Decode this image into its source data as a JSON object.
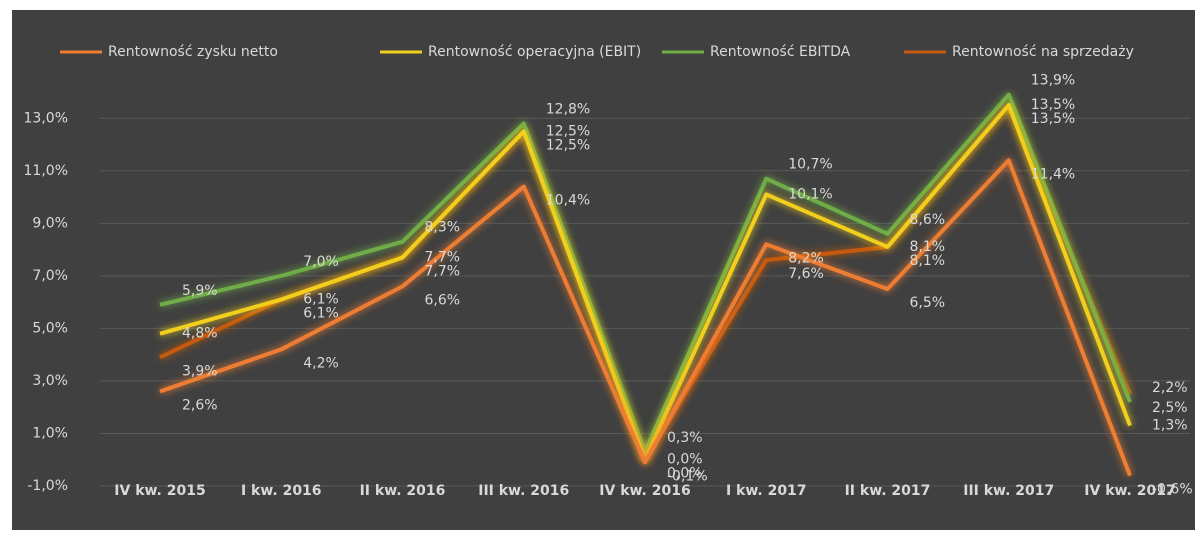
{
  "chart_data": {
    "type": "line",
    "categories": [
      "IV kw. 2015",
      "I kw. 2016",
      "II kw. 2016",
      "III kw. 2016",
      "IV kw. 2016",
      "I kw. 2017",
      "II kw. 2017",
      "III kw. 2017",
      "IV kw. 2017"
    ],
    "series": [
      {
        "name": "Rentowność zysku netto",
        "color": "#ed7d31",
        "values": [
          2.6,
          4.2,
          6.6,
          10.4,
          -0.1,
          8.2,
          6.5,
          11.4,
          -0.6
        ],
        "value_labels": [
          "2,6%",
          "4,2%",
          "6,6%",
          "10,4%",
          "-0,1%",
          "8,2%",
          "6,5%",
          "11,4%",
          "-0,6%"
        ]
      },
      {
        "name": "Rentowność operacyjna (EBIT)",
        "color": "#f2cf1d",
        "values": [
          4.8,
          6.1,
          7.7,
          12.5,
          0.0,
          10.1,
          8.1,
          13.5,
          1.3
        ],
        "value_labels": [
          "4,8%",
          "6,1%",
          "7,7%",
          "12,5%",
          "0,0%",
          "10,1%",
          "8,1%",
          "13,5%",
          "1,3%"
        ]
      },
      {
        "name": "Rentowność EBITDA",
        "color": "#70ad47",
        "values": [
          5.9,
          7.0,
          8.3,
          12.8,
          0.3,
          10.7,
          8.6,
          13.9,
          2.2
        ],
        "value_labels": [
          "5,9%",
          "7,0%",
          "8,3%",
          "12,8%",
          "0,3%",
          "10,7%",
          "8,6%",
          "13,9%",
          "2,2%"
        ]
      },
      {
        "name": "Rentowność na sprzedaży",
        "color": "#c55a11",
        "values": [
          3.9,
          6.1,
          7.7,
          12.5,
          0.0,
          7.6,
          8.1,
          13.5,
          2.5
        ],
        "value_labels": [
          "3,9%",
          "6,1%",
          "7,7%",
          "12,5%",
          "0,0%",
          "7,6%",
          "8,1%",
          "13,5%",
          "2,5%"
        ]
      }
    ],
    "ylim": [
      -1,
      14
    ],
    "yticks": [
      {
        "value": -1,
        "label": "-1,0%"
      },
      {
        "value": 1,
        "label": "1,0%"
      },
      {
        "value": 3,
        "label": "3,0%"
      },
      {
        "value": 5,
        "label": "5,0%"
      },
      {
        "value": 7,
        "label": "7,0%"
      },
      {
        "value": 9,
        "label": "9,0%"
      },
      {
        "value": 11,
        "label": "11,0%"
      },
      {
        "value": 13,
        "label": "13,0%"
      }
    ],
    "grid": true,
    "legend": "top"
  }
}
